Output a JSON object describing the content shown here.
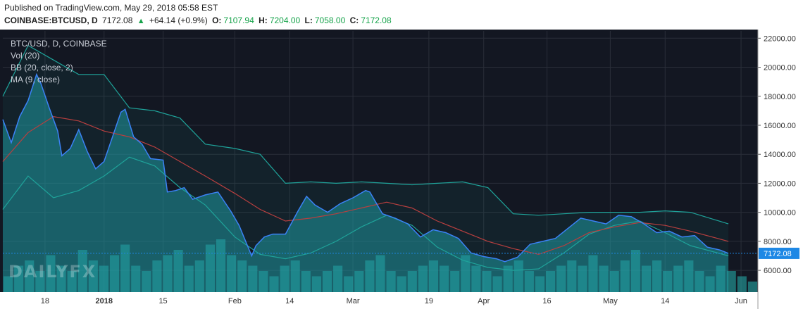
{
  "header": {
    "published": "Published on TradingView.com, May 29, 2018 05:58 EST",
    "symbol": "COINBASE:BTCUSD, D",
    "last": "7172.08",
    "change_arrow": "▲",
    "change": "+64.14 (+0.9%)",
    "o_label": "O:",
    "o": "7107.94",
    "h_label": "H:",
    "h": "7204.00",
    "l_label": "L:",
    "l": "7058.00",
    "c_label": "C:",
    "c": "7172.08"
  },
  "legend": {
    "line1": "BTC/USD, D, COINBASE",
    "line2": "Vol (20)",
    "line3": "BB (20, close, 2)",
    "line4": "MA (9, close)"
  },
  "logo": "DAILYFX",
  "colors": {
    "background": "#131722",
    "price_fill": "#1f9ba3",
    "price_line": "#3b82f6",
    "bb_upper": "#1fa39a",
    "ma": "#b83f3f",
    "volume": "#27b5b0",
    "last_badge": "#1e88e5"
  },
  "chart_data": {
    "type": "area",
    "ylim": [
      4500,
      22500
    ],
    "y_ticks": [
      "22000.00",
      "20000.00",
      "18000.00",
      "16000.00",
      "14000.00",
      "12000.00",
      "10000.00",
      "8000.00",
      "6000.00"
    ],
    "y_tick_values": [
      22000,
      20000,
      18000,
      16000,
      14000,
      12000,
      10000,
      8000,
      6000
    ],
    "last_value_label": "7172.08",
    "last_value": 7172.08,
    "x_ticks": [
      "18",
      "2018",
      "15",
      "Feb",
      "14",
      "Mar",
      "19",
      "Apr",
      "16",
      "May",
      "14",
      "Jun"
    ],
    "x_tick_dates": [
      "2017-12-18",
      "2018-01-01",
      "2018-01-15",
      "2018-02-01",
      "2018-02-14",
      "2018-03-01",
      "2018-03-19",
      "2018-04-01",
      "2018-04-16",
      "2018-05-01",
      "2018-05-14",
      "2018-06-01"
    ],
    "x_start": "2017-12-08",
    "x_end": "2018-06-05",
    "series": [
      {
        "type": "area",
        "dates": [
          "2017-12-08",
          "2017-12-10",
          "2017-12-12",
          "2017-12-14",
          "2017-12-16",
          "2017-12-17",
          "2017-12-19",
          "2017-12-21",
          "2017-12-22",
          "2017-12-24",
          "2017-12-26",
          "2017-12-28",
          "2017-12-30",
          "2018-01-01",
          "2018-01-03",
          "2018-01-05",
          "2018-01-06",
          "2018-01-08",
          "2018-01-10",
          "2018-01-12",
          "2018-01-15",
          "2018-01-16",
          "2018-01-18",
          "2018-01-20",
          "2018-01-22",
          "2018-01-25",
          "2018-01-28",
          "2018-01-31",
          "2018-02-02",
          "2018-02-05",
          "2018-02-06",
          "2018-02-08",
          "2018-02-10",
          "2018-02-13",
          "2018-02-16",
          "2018-02-18",
          "2018-02-20",
          "2018-02-23",
          "2018-02-26",
          "2018-03-01",
          "2018-03-04",
          "2018-03-05",
          "2018-03-08",
          "2018-03-11",
          "2018-03-14",
          "2018-03-17",
          "2018-03-20",
          "2018-03-23",
          "2018-03-26",
          "2018-03-29",
          "2018-04-01",
          "2018-04-04",
          "2018-04-06",
          "2018-04-09",
          "2018-04-12",
          "2018-04-15",
          "2018-04-18",
          "2018-04-21",
          "2018-04-24",
          "2018-04-27",
          "2018-04-30",
          "2018-05-03",
          "2018-05-06",
          "2018-05-09",
          "2018-05-12",
          "2018-05-15",
          "2018-05-18",
          "2018-05-21",
          "2018-05-24",
          "2018-05-27",
          "2018-05-29"
        ],
        "values": [
          16400,
          14800,
          16600,
          17700,
          19500,
          18900,
          17200,
          15600,
          13900,
          14400,
          15700,
          14200,
          13000,
          13500,
          15200,
          16900,
          17100,
          15200,
          14700,
          13700,
          13600,
          11400,
          11500,
          11700,
          10900,
          11200,
          11400,
          10100,
          9100,
          7000,
          7700,
          8300,
          8500,
          8500,
          10100,
          11100,
          10500,
          10000,
          10600,
          11000,
          11500,
          11400,
          9900,
          9600,
          9200,
          8300,
          8800,
          8600,
          8200,
          7200,
          6950,
          6800,
          6600,
          6900,
          7800,
          8000,
          8200,
          8900,
          9600,
          9400,
          9200,
          9800,
          9700,
          9200,
          8600,
          8700,
          8300,
          8400,
          7600,
          7400,
          7172
        ]
      },
      {
        "type": "line",
        "dates": [
          "2017-12-08",
          "2017-12-14",
          "2017-12-20",
          "2017-12-26",
          "2018-01-01",
          "2018-01-07",
          "2018-01-13",
          "2018-01-19",
          "2018-01-25",
          "2018-02-01",
          "2018-02-07",
          "2018-02-13",
          "2018-02-19",
          "2018-02-25",
          "2018-03-03",
          "2018-03-09",
          "2018-03-15",
          "2018-03-21",
          "2018-03-27",
          "2018-04-02",
          "2018-04-08",
          "2018-04-14",
          "2018-04-20",
          "2018-04-26",
          "2018-05-02",
          "2018-05-08",
          "2018-05-14",
          "2018-05-20",
          "2018-05-29"
        ],
        "values": [
          18000,
          21500,
          20500,
          19500,
          19500,
          17200,
          17000,
          16500,
          14700,
          14400,
          14000,
          12000,
          12100,
          12000,
          12100,
          12000,
          11900,
          12000,
          12100,
          11700,
          9900,
          9800,
          9900,
          10000,
          10000,
          10000,
          10100,
          10000,
          9200
        ]
      },
      {
        "type": "line",
        "dates": [
          "2017-12-08",
          "2017-12-14",
          "2017-12-20",
          "2017-12-26",
          "2018-01-01",
          "2018-01-07",
          "2018-01-13",
          "2018-01-19",
          "2018-01-25",
          "2018-02-01",
          "2018-02-07",
          "2018-02-13",
          "2018-02-19",
          "2018-02-25",
          "2018-03-03",
          "2018-03-09",
          "2018-03-15",
          "2018-03-21",
          "2018-03-27",
          "2018-04-02",
          "2018-04-08",
          "2018-04-14",
          "2018-04-20",
          "2018-04-26",
          "2018-05-02",
          "2018-05-08",
          "2018-05-14",
          "2018-05-20",
          "2018-05-29"
        ],
        "values": [
          13500,
          15500,
          16600,
          16300,
          15600,
          15200,
          14500,
          13500,
          12500,
          11300,
          10200,
          9400,
          9600,
          9900,
          10300,
          10700,
          10300,
          9400,
          8700,
          8000,
          7500,
          7100,
          7700,
          8600,
          9000,
          9300,
          9100,
          8700,
          8000
        ]
      },
      {
        "type": "line",
        "dates": [
          "2017-12-08",
          "2017-12-14",
          "2017-12-20",
          "2017-12-26",
          "2018-01-01",
          "2018-01-07",
          "2018-01-13",
          "2018-01-19",
          "2018-01-25",
          "2018-02-01",
          "2018-02-07",
          "2018-02-13",
          "2018-02-19",
          "2018-02-25",
          "2018-03-03",
          "2018-03-09",
          "2018-03-15",
          "2018-03-21",
          "2018-03-27",
          "2018-04-02",
          "2018-04-08",
          "2018-04-14",
          "2018-04-20",
          "2018-04-26",
          "2018-05-02",
          "2018-05-08",
          "2018-05-14",
          "2018-05-20",
          "2018-05-29"
        ],
        "values": [
          10200,
          12500,
          11000,
          11500,
          12500,
          13800,
          13200,
          11700,
          10500,
          8300,
          7100,
          6800,
          7200,
          8000,
          9000,
          9800,
          9100,
          7600,
          6700,
          6200,
          6000,
          6100,
          7200,
          8500,
          9100,
          9400,
          8600,
          7700,
          7000
        ]
      }
    ],
    "volume": [
      0.3,
      0.5,
      0.6,
      0.4,
      0.7,
      0.5,
      0.4,
      0.8,
      0.6,
      0.5,
      0.7,
      0.9,
      0.5,
      0.4,
      0.6,
      0.7,
      0.8,
      0.5,
      0.6,
      0.9,
      1.0,
      0.7,
      0.6,
      0.5,
      0.4,
      0.3,
      0.5,
      0.6,
      0.4,
      0.3,
      0.4,
      0.5,
      0.3,
      0.4,
      0.6,
      0.7,
      0.4,
      0.3,
      0.4,
      0.5,
      0.6,
      0.5,
      0.4,
      0.7,
      0.5,
      0.4,
      0.3,
      0.5,
      0.6,
      0.4,
      0.3,
      0.4,
      0.5,
      0.6,
      0.5,
      0.7,
      0.5,
      0.4,
      0.6,
      0.8,
      0.5,
      0.6,
      0.4,
      0.5,
      0.6,
      0.4,
      0.3,
      0.5,
      0.4,
      0.3,
      0.2
    ]
  }
}
